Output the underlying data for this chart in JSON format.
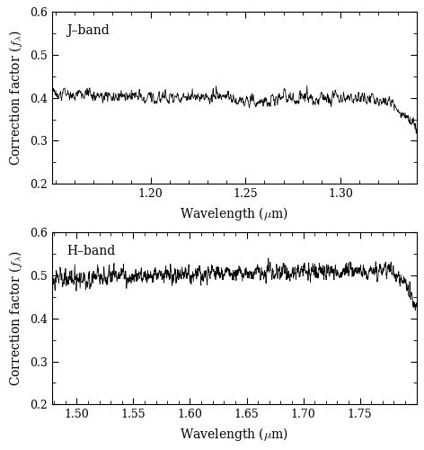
{
  "j_band": {
    "x_min": 1.148,
    "x_max": 1.34,
    "y_min": 0.2,
    "y_max": 0.6,
    "x_ticks": [
      1.2,
      1.25,
      1.3
    ],
    "y_ticks": [
      0.2,
      0.3,
      0.4,
      0.5,
      0.6
    ],
    "xlabel": "Wavelength ($\\mu$m)",
    "ylabel": "Correction factor ($f_{\\lambda}$)",
    "label": "J–band",
    "base_value": 0.403,
    "noise_scale": 0.013,
    "num_points": 1000
  },
  "h_band": {
    "x_min": 1.478,
    "x_max": 1.8,
    "y_min": 0.2,
    "y_max": 0.6,
    "x_ticks": [
      1.5,
      1.55,
      1.6,
      1.65,
      1.7,
      1.75
    ],
    "y_ticks": [
      0.2,
      0.3,
      0.4,
      0.5,
      0.6
    ],
    "xlabel": "Wavelength ($\\mu$m)",
    "ylabel": "Correction factor ($f_{\\lambda}$)",
    "label": "H–band",
    "base_value": 0.49,
    "noise_scale": 0.015,
    "num_points": 1700
  },
  "line_color": "#000000",
  "line_width": 0.55,
  "bg_color": "#ffffff",
  "tick_direction": "in",
  "label_fontsize": 10,
  "tick_fontsize": 9,
  "annotation_fontsize": 10,
  "figsize": [
    4.72,
    5.0
  ],
  "dpi": 100
}
